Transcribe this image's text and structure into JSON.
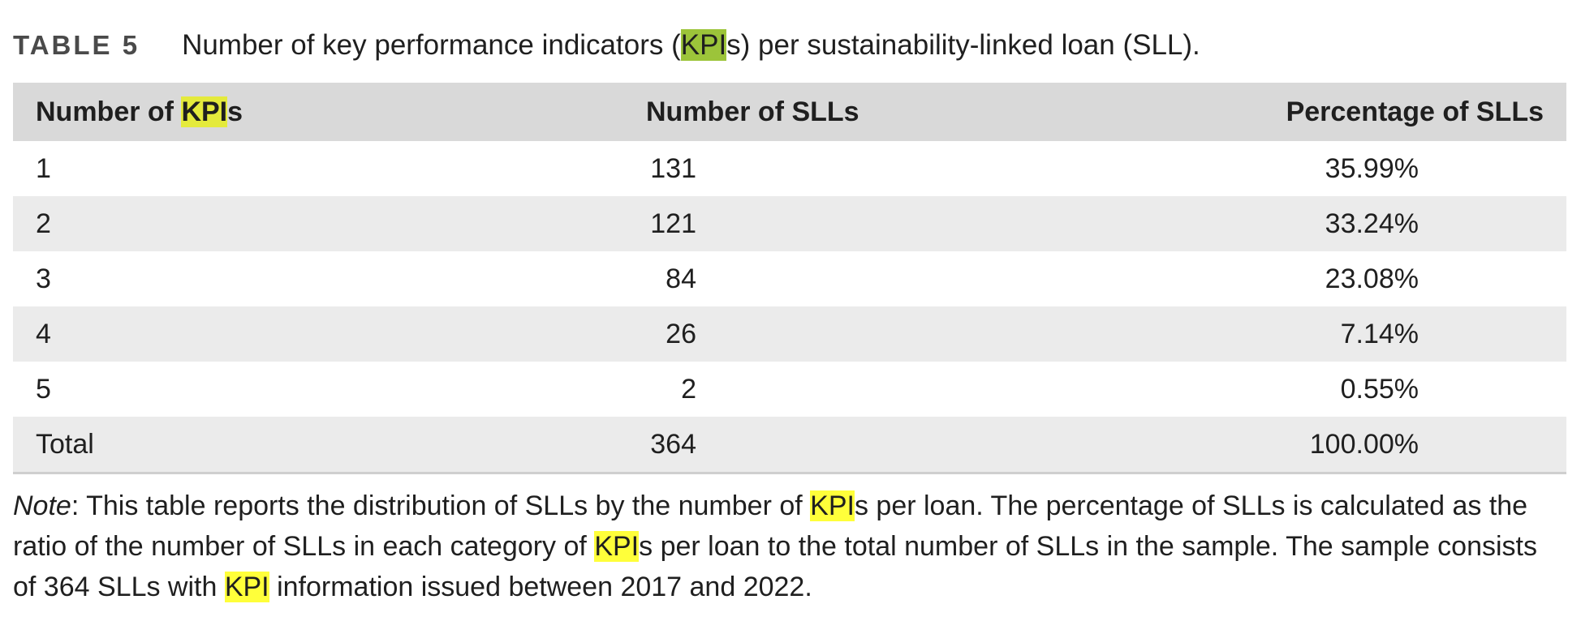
{
  "caption": {
    "label": "TABLE 5",
    "text_before": "Number of key performance indicators (",
    "text_kpi": "KPI",
    "text_after": "s) per sustainability-linked loan (SLL)."
  },
  "table": {
    "headers": {
      "col1_prefix": "Number of ",
      "col1_kpi": "KPI",
      "col1_suffix": "s",
      "col2": "Number of SLLs",
      "col3": "Percentage of SLLs"
    },
    "rows": [
      {
        "kpis": "1",
        "count": "131",
        "pct": "35.99%"
      },
      {
        "kpis": "2",
        "count": "121",
        "pct": "33.24%"
      },
      {
        "kpis": "3",
        "count": "84",
        "pct": "23.08%"
      },
      {
        "kpis": "4",
        "count": "26",
        "pct": "7.14%"
      },
      {
        "kpis": "5",
        "count": "2",
        "pct": "0.55%"
      },
      {
        "kpis": "Total",
        "count": "364",
        "pct": "100.00%"
      }
    ]
  },
  "note": {
    "label": "Note",
    "p1": ": This table reports the distribution of SLLs by the number of ",
    "kpi1": "KPI",
    "p2": "s per loan. The percentage of SLLs is calculated as the ratio of the number of SLLs in each category of ",
    "kpi2": "KPI",
    "p3": "s per loan to the total number of SLLs in the sample. The sample consists of 364 SLLs with ",
    "kpi3": "KPI",
    "p4": " information issued between 2017 and 2022."
  }
}
